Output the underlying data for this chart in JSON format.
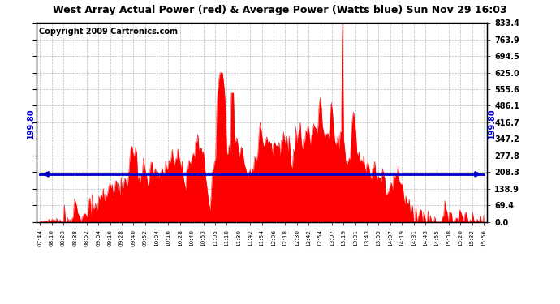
{
  "title": "West Array Actual Power (red) & Average Power (Watts blue) Sun Nov 29 16:03",
  "copyright": "Copyright 2009 Cartronics.com",
  "average_power": 199.8,
  "ymax": 833.4,
  "ymin": 0.0,
  "yticks": [
    0.0,
    69.4,
    138.9,
    208.3,
    277.8,
    347.2,
    416.7,
    486.1,
    555.6,
    625.0,
    694.5,
    763.9,
    833.4
  ],
  "bar_color": "#FF0000",
  "avg_line_color": "#0000CC",
  "bg_color": "#FFFFFF",
  "plot_bg_color": "#FFFFFF",
  "grid_color": "#AAAAAA",
  "title_fontsize": 9,
  "copyright_fontsize": 7,
  "xtick_labels": [
    "07:44",
    "08:10",
    "08:23",
    "08:38",
    "08:52",
    "09:04",
    "09:16",
    "09:28",
    "09:40",
    "09:52",
    "10:04",
    "10:16",
    "10:28",
    "10:40",
    "10:53",
    "11:05",
    "11:18",
    "11:30",
    "11:42",
    "11:54",
    "12:06",
    "12:18",
    "12:30",
    "12:42",
    "12:54",
    "13:07",
    "13:19",
    "13:31",
    "13:43",
    "13:55",
    "14:07",
    "14:19",
    "14:31",
    "14:43",
    "14:55",
    "15:08",
    "15:20",
    "15:32",
    "15:56"
  ]
}
